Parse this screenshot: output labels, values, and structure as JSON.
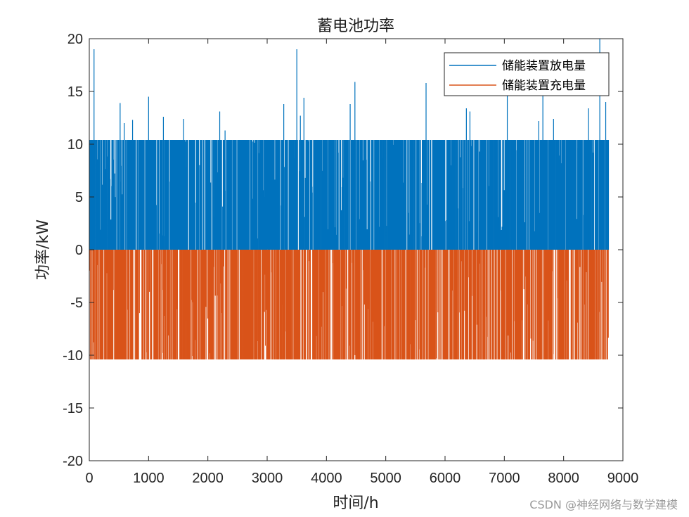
{
  "chart_data": {
    "type": "bar",
    "title": "蓄电池功率",
    "xlabel": "时间/h",
    "ylabel": "功率/kW",
    "xlim": [
      0,
      9000
    ],
    "ylim": [
      -20,
      20
    ],
    "xticks": [
      0,
      1000,
      2000,
      3000,
      4000,
      5000,
      6000,
      7000,
      8000,
      9000
    ],
    "yticks": [
      -20,
      -15,
      -10,
      -5,
      0,
      5,
      10,
      15,
      20
    ],
    "x_tick_labels": [
      "0",
      "1000",
      "2000",
      "3000",
      "4000",
      "5000",
      "6000",
      "7000",
      "8000",
      "9000"
    ],
    "y_tick_labels": [
      "-20",
      "-15",
      "-10",
      "-5",
      "0",
      "5",
      "10",
      "15",
      "20"
    ],
    "grid": false,
    "legend_position": "top-right",
    "x_data_range": [
      1,
      8760
    ],
    "series": [
      {
        "name": "储能装置放电量",
        "color": "#0072BD",
        "typical_max": 10.4,
        "peaks": [
          {
            "x": 80,
            "y": 19.0
          },
          {
            "x": 520,
            "y": 13.9
          },
          {
            "x": 590,
            "y": 12.0
          },
          {
            "x": 730,
            "y": 12.3
          },
          {
            "x": 1000,
            "y": 14.5
          },
          {
            "x": 1250,
            "y": 12.6
          },
          {
            "x": 1590,
            "y": 12.4
          },
          {
            "x": 2200,
            "y": 13.1
          },
          {
            "x": 2290,
            "y": 11.3
          },
          {
            "x": 3280,
            "y": 13.8
          },
          {
            "x": 3500,
            "y": 19.0
          },
          {
            "x": 3560,
            "y": 12.7
          },
          {
            "x": 3620,
            "y": 14.4
          },
          {
            "x": 4400,
            "y": 13.8
          },
          {
            "x": 4480,
            "y": 15.9
          },
          {
            "x": 5680,
            "y": 15.8
          },
          {
            "x": 6360,
            "y": 13.4
          },
          {
            "x": 6420,
            "y": 13.1
          },
          {
            "x": 7050,
            "y": 14.8
          },
          {
            "x": 7580,
            "y": 12.2
          },
          {
            "x": 7650,
            "y": 14.7
          },
          {
            "x": 7830,
            "y": 12.4
          },
          {
            "x": 8420,
            "y": 13.4
          },
          {
            "x": 8610,
            "y": 20.0
          },
          {
            "x": 8710,
            "y": 14.0
          }
        ]
      },
      {
        "name": "储能装置充电量",
        "color": "#D95319",
        "typical_min": -10.4
      }
    ]
  },
  "watermark": "CSDN @神经网络与数学建模"
}
